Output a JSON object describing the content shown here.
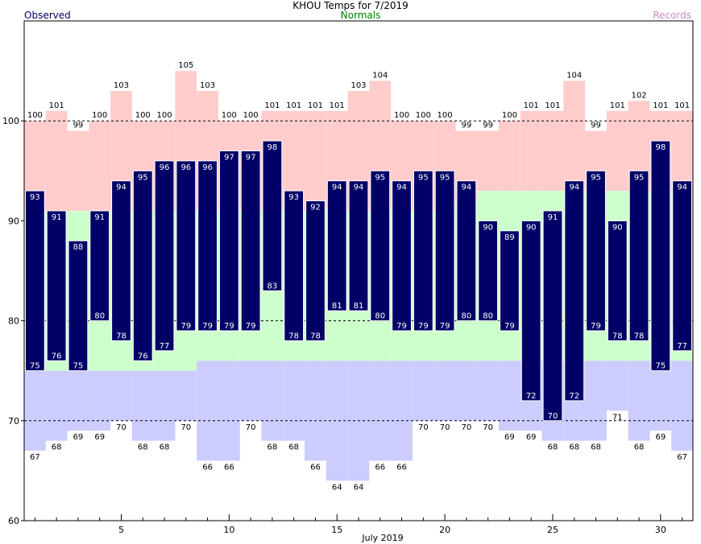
{
  "chart_data": {
    "type": "bar",
    "title": "KHOU Temps for 7/2019",
    "xlabel": "July 2019",
    "ylabel": "",
    "legend": {
      "observed": "Observed",
      "normals": "Normals",
      "records": "Records"
    },
    "ylim": [
      60,
      110
    ],
    "yticks": [
      60,
      70,
      80,
      90,
      100
    ],
    "xticks": [
      5,
      10,
      15,
      20,
      25,
      30
    ],
    "days": [
      1,
      2,
      3,
      4,
      5,
      6,
      7,
      8,
      9,
      10,
      11,
      12,
      13,
      14,
      15,
      16,
      17,
      18,
      19,
      20,
      21,
      22,
      23,
      24,
      25,
      26,
      27,
      28,
      29,
      30,
      31
    ],
    "series": [
      {
        "name": "Observed",
        "role": "observed_high",
        "values": [
          93,
          91,
          88,
          91,
          94,
          95,
          96,
          96,
          96,
          97,
          97,
          98,
          93,
          92,
          94,
          94,
          95,
          94,
          95,
          95,
          94,
          90,
          89,
          90,
          91,
          94,
          95,
          90,
          95,
          98,
          94
        ]
      },
      {
        "name": "Observed",
        "role": "observed_low",
        "values": [
          75,
          76,
          75,
          80,
          78,
          76,
          77,
          79,
          79,
          79,
          79,
          83,
          78,
          78,
          81,
          81,
          80,
          79,
          79,
          79,
          80,
          80,
          79,
          72,
          70,
          72,
          79,
          78,
          78,
          75,
          77
        ]
      },
      {
        "name": "Normals",
        "role": "normal_high",
        "values": [
          91,
          91,
          91,
          91,
          91,
          91,
          91,
          91,
          91,
          91,
          91,
          91,
          91,
          91,
          91,
          91,
          91,
          91,
          91,
          91,
          92,
          93,
          93,
          93,
          93,
          93,
          93,
          93,
          93,
          93,
          93
        ]
      },
      {
        "name": "Normals",
        "role": "normal_low",
        "values": [
          75,
          75,
          75,
          75,
          75,
          75,
          75,
          75,
          76,
          76,
          76,
          76,
          76,
          76,
          76,
          76,
          76,
          76,
          76,
          76,
          76,
          76,
          76,
          76,
          76,
          76,
          76,
          76,
          76,
          76,
          76
        ]
      },
      {
        "name": "Records",
        "role": "record_high",
        "values": [
          100,
          101,
          99,
          100,
          103,
          100,
          100,
          105,
          103,
          100,
          100,
          101,
          101,
          101,
          101,
          103,
          104,
          100,
          100,
          100,
          99,
          99,
          100,
          101,
          101,
          104,
          99,
          101,
          102,
          101,
          101
        ]
      },
      {
        "name": "Records",
        "role": "record_low",
        "values": [
          67,
          68,
          69,
          69,
          70,
          68,
          68,
          70,
          66,
          66,
          70,
          68,
          68,
          66,
          64,
          64,
          66,
          66,
          70,
          70,
          70,
          70,
          69,
          69,
          68,
          68,
          68,
          71,
          68,
          69,
          67
        ]
      }
    ],
    "dashed_gridlines": [
      70,
      80,
      100
    ],
    "colors": {
      "observed": "#000066",
      "normals": "#ccffcc",
      "record_high": "#ffcccc",
      "record_low": "#ccccff",
      "title": "#000000",
      "observed_legend": "#000066",
      "normals_legend": "#008000",
      "records_legend": "#cc88cc"
    }
  }
}
